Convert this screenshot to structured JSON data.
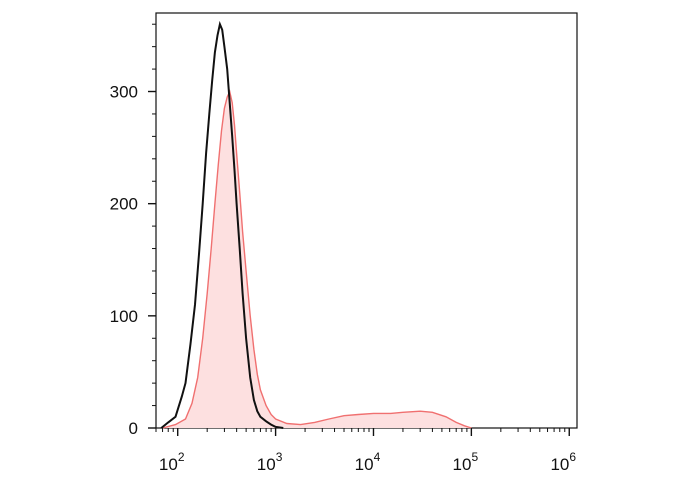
{
  "chart_data": {
    "type": "area",
    "title": "",
    "xlabel": "",
    "ylabel": "",
    "x_scale": "log",
    "xlim": [
      60,
      1200000
    ],
    "ylim": [
      0,
      370
    ],
    "grid": false,
    "legend": "none",
    "y_ticks": [
      {
        "value": 0,
        "label": "0"
      },
      {
        "value": 100,
        "label": "100"
      },
      {
        "value": 200,
        "label": "200"
      },
      {
        "value": 300,
        "label": "300"
      }
    ],
    "x_ticks": [
      {
        "value": 100,
        "base": "10",
        "exp": "2"
      },
      {
        "value": 1000,
        "base": "10",
        "exp": "3"
      },
      {
        "value": 10000,
        "base": "10",
        "exp": "4"
      },
      {
        "value": 100000,
        "base": "10",
        "exp": "5"
      },
      {
        "value": 1000000,
        "base": "10",
        "exp": "6"
      }
    ],
    "series": [
      {
        "style": "filled",
        "color": "#f07070",
        "fill": "#fde0e0",
        "points": [
          [
            70,
            0
          ],
          [
            95,
            3
          ],
          [
            120,
            8
          ],
          [
            140,
            22
          ],
          [
            160,
            45
          ],
          [
            180,
            80
          ],
          [
            200,
            120
          ],
          [
            220,
            160
          ],
          [
            240,
            200
          ],
          [
            260,
            235
          ],
          [
            280,
            265
          ],
          [
            300,
            285
          ],
          [
            320,
            295
          ],
          [
            340,
            300
          ],
          [
            360,
            290
          ],
          [
            380,
            270
          ],
          [
            400,
            245
          ],
          [
            430,
            210
          ],
          [
            460,
            175
          ],
          [
            500,
            140
          ],
          [
            550,
            100
          ],
          [
            600,
            70
          ],
          [
            650,
            48
          ],
          [
            700,
            34
          ],
          [
            800,
            20
          ],
          [
            900,
            12
          ],
          [
            1000,
            8
          ],
          [
            1300,
            4
          ],
          [
            1800,
            3
          ],
          [
            2500,
            5
          ],
          [
            3500,
            8
          ],
          [
            5000,
            11
          ],
          [
            7000,
            12
          ],
          [
            10000,
            13
          ],
          [
            15000,
            13
          ],
          [
            20000,
            14
          ],
          [
            30000,
            15
          ],
          [
            40000,
            14
          ],
          [
            55000,
            10
          ],
          [
            70000,
            5
          ],
          [
            85000,
            2
          ],
          [
            100000,
            0
          ]
        ]
      },
      {
        "style": "line",
        "color": "#111111",
        "points": [
          [
            68,
            0
          ],
          [
            80,
            5
          ],
          [
            95,
            10
          ],
          [
            110,
            28
          ],
          [
            120,
            40
          ],
          [
            135,
            75
          ],
          [
            150,
            110
          ],
          [
            165,
            155
          ],
          [
            180,
            200
          ],
          [
            195,
            245
          ],
          [
            210,
            280
          ],
          [
            225,
            310
          ],
          [
            240,
            335
          ],
          [
            255,
            350
          ],
          [
            270,
            360
          ],
          [
            285,
            355
          ],
          [
            300,
            340
          ],
          [
            320,
            320
          ],
          [
            340,
            290
          ],
          [
            360,
            260
          ],
          [
            380,
            230
          ],
          [
            400,
            200
          ],
          [
            430,
            160
          ],
          [
            460,
            120
          ],
          [
            500,
            80
          ],
          [
            550,
            45
          ],
          [
            600,
            25
          ],
          [
            650,
            15
          ],
          [
            700,
            10
          ],
          [
            800,
            6
          ],
          [
            900,
            3
          ],
          [
            1000,
            1
          ],
          [
            1200,
            0
          ]
        ]
      }
    ]
  }
}
